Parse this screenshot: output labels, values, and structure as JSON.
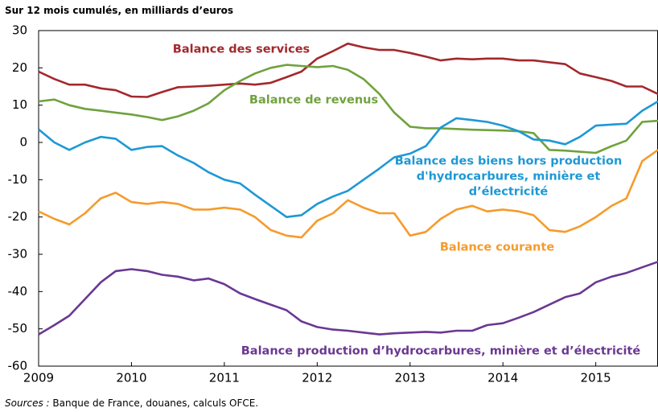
{
  "chart_data": {
    "type": "line",
    "title": "Sur 12 mois cumulés, en milliards d’euros",
    "source": {
      "label": "Sources :",
      "text": "Banque de France, douanes, calculs OFCE."
    },
    "x": [
      2009,
      2009.17,
      2009.33,
      2009.5,
      2009.67,
      2009.83,
      2010,
      2010.17,
      2010.33,
      2010.5,
      2010.67,
      2010.83,
      2011,
      2011.17,
      2011.33,
      2011.5,
      2011.67,
      2011.83,
      2012,
      2012.17,
      2012.33,
      2012.5,
      2012.67,
      2012.83,
      2013,
      2013.17,
      2013.33,
      2013.5,
      2013.67,
      2013.83,
      2014,
      2014.17,
      2014.33,
      2014.5,
      2014.67,
      2014.83,
      2015,
      2015.17,
      2015.33,
      2015.5,
      2015.67
    ],
    "xlim": [
      2009,
      2015.67
    ],
    "xticks": [
      2009,
      2010,
      2011,
      2012,
      2013,
      2014,
      2015
    ],
    "ylim": [
      -60,
      30
    ],
    "yticks": [
      -60,
      -50,
      -40,
      -30,
      -20,
      -10,
      0,
      10,
      20,
      30
    ],
    "grid": false,
    "series": [
      {
        "name": "Balance des services",
        "color": "#a3282c",
        "values": [
          19,
          17,
          15.5,
          15.5,
          14.5,
          14,
          12.3,
          12.2,
          13.5,
          14.8,
          15,
          15.2,
          15.5,
          15.8,
          15.5,
          16,
          17.5,
          19,
          22.5,
          24.5,
          26.5,
          25.5,
          24.8,
          24.8,
          24,
          23,
          22,
          22.5,
          22.3,
          22.5,
          22.5,
          22,
          22,
          21.5,
          21,
          18.5,
          17.5,
          16.5,
          15,
          15,
          13
        ]
      },
      {
        "name": "Balance de revenus",
        "color": "#6fa23d",
        "values": [
          11,
          11.5,
          10,
          9,
          8.5,
          8,
          7.5,
          6.8,
          6,
          7,
          8.5,
          10.5,
          14,
          16.5,
          18.5,
          20,
          20.8,
          20.5,
          20.2,
          20.5,
          19.5,
          17,
          13,
          8,
          4.2,
          3.8,
          3.8,
          3.6,
          3.4,
          3.3,
          3.2,
          3,
          2.5,
          -2,
          -2.2,
          -2.5,
          -2.8,
          -1,
          0.5,
          5.5,
          5.8
        ]
      },
      {
        "name": "Balance des biens hors production d'hydrocarbures, minière et d’électricité",
        "color": "#1e98d5",
        "values": [
          3.5,
          0,
          -2,
          0,
          1.5,
          1,
          -2,
          -1.2,
          -1,
          -3.5,
          -5.5,
          -8,
          -10,
          -11,
          -14,
          -17,
          -20,
          -19.5,
          -16.5,
          -14.5,
          -13,
          -10,
          -7,
          -4,
          -3,
          -1,
          4,
          6.5,
          6,
          5.5,
          4.5,
          3,
          0.8,
          0.5,
          -0.5,
          1.5,
          4.5,
          4.8,
          5,
          8.5,
          11
        ]
      },
      {
        "name": "Balance courante",
        "color": "#f59b2c",
        "values": [
          -18.5,
          -20.5,
          -22,
          -19,
          -15,
          -13.5,
          -16,
          -16.5,
          -16,
          -16.5,
          -18,
          -18,
          -17.5,
          -18,
          -20,
          -23.5,
          -25,
          -25.5,
          -21,
          -19,
          -15.5,
          -17.5,
          -19,
          -19,
          -25,
          -24,
          -20.5,
          -18,
          -17,
          -18.5,
          -18,
          -18.5,
          -19.5,
          -23.5,
          -24,
          -22.5,
          -20,
          -17,
          -15,
          -5,
          -2
        ]
      },
      {
        "name": "Balance production d’hydrocarbures, minière et d’électricité",
        "color": "#6a3893",
        "values": [
          -51.5,
          -49,
          -46.5,
          -42,
          -37.5,
          -34.5,
          -34,
          -34.5,
          -35.5,
          -36,
          -37,
          -36.5,
          -38,
          -40.5,
          -42,
          -43.5,
          -45,
          -48,
          -49.5,
          -50.2,
          -50.5,
          -51,
          -51.5,
          -51.2,
          -51,
          -50.8,
          -51,
          -50.5,
          -50.5,
          -49,
          -48.5,
          -47,
          -45.5,
          -43.5,
          -41.5,
          -40.5,
          -37.5,
          -36,
          -35,
          -33.5,
          -32
        ]
      }
    ]
  }
}
